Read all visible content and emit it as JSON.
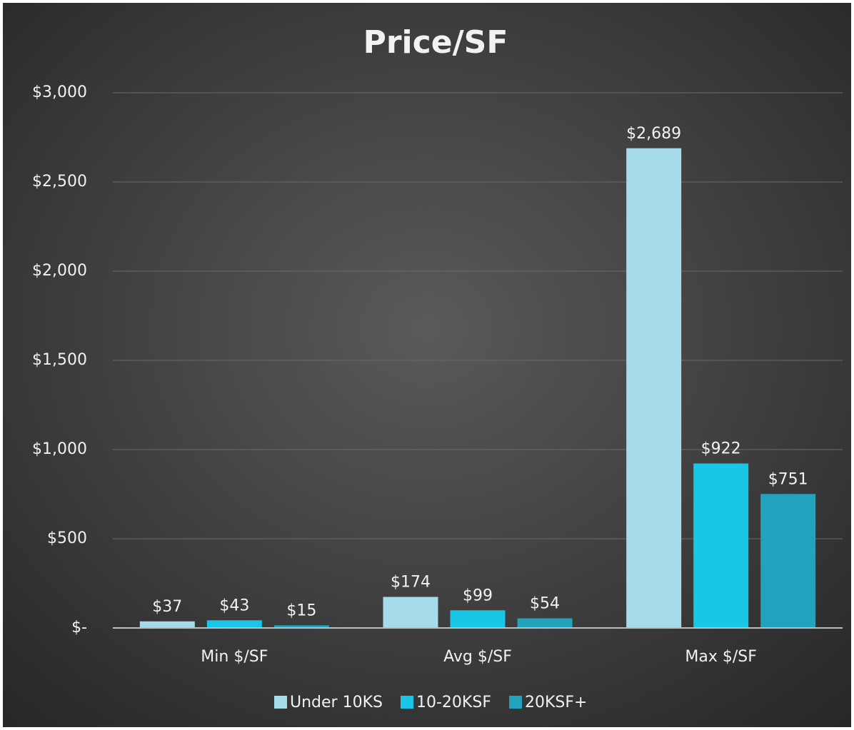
{
  "chart_data": {
    "type": "bar",
    "title": "Price/SF",
    "categories": [
      "Min $/SF",
      "Avg $/SF",
      "Max $/SF"
    ],
    "series": [
      {
        "name": "Under 10KS",
        "color": "#a6dbea",
        "values": [
          37,
          174,
          2689
        ],
        "value_labels": [
          "$37",
          "$174",
          "$2,689"
        ]
      },
      {
        "name": "10-20KSF",
        "color": "#1ac6e6",
        "values": [
          43,
          99,
          922
        ],
        "value_labels": [
          "$43",
          "$99",
          "$922"
        ]
      },
      {
        "name": "20KSF+",
        "color": "#22a3bd",
        "values": [
          15,
          54,
          751
        ],
        "value_labels": [
          "$15",
          "$54",
          "$751"
        ]
      }
    ],
    "ylim": [
      0,
      3000
    ],
    "yticks": [
      {
        "value": 0,
        "label": "$-"
      },
      {
        "value": 500,
        "label": "$500"
      },
      {
        "value": 1000,
        "label": "$1,000"
      },
      {
        "value": 1500,
        "label": "$1,500"
      },
      {
        "value": 2000,
        "label": "$2,000"
      },
      {
        "value": 2500,
        "label": "$2,500"
      },
      {
        "value": 3000,
        "label": "$3,000"
      }
    ],
    "grid": true,
    "legend": "bottom"
  }
}
